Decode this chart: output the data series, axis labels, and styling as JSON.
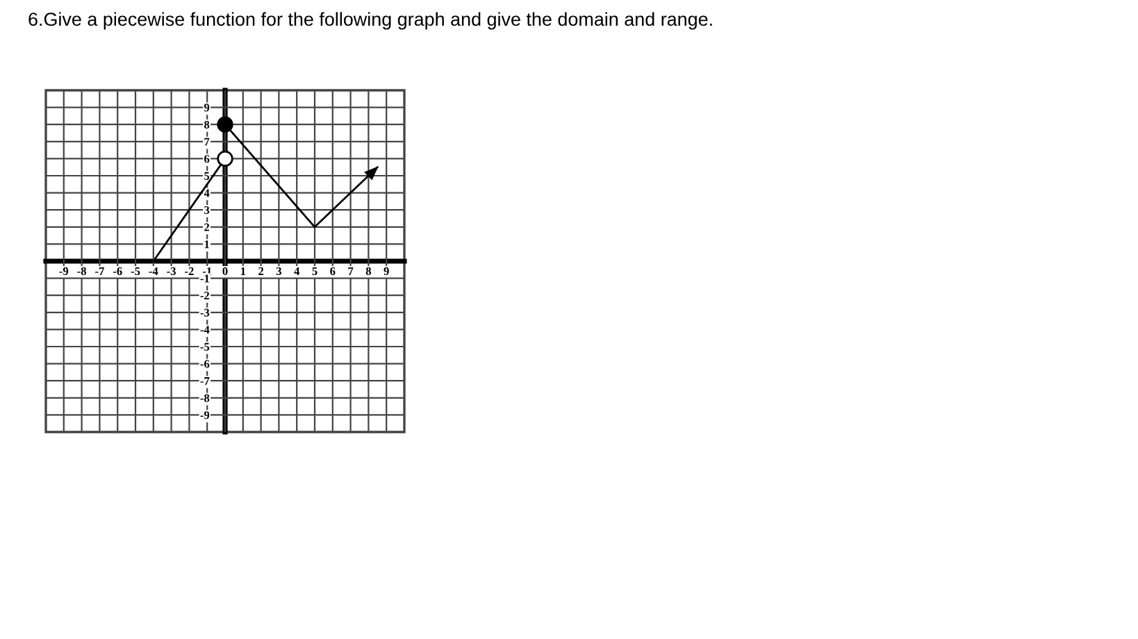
{
  "chart_data": {
    "type": "line",
    "title": "6.Give a piecewise function for the following graph and give the domain and range.",
    "xlim": [
      -10,
      10
    ],
    "ylim": [
      -10,
      10
    ],
    "xticks": [
      -9,
      -8,
      -7,
      -6,
      -5,
      -4,
      -3,
      -2,
      -1,
      0,
      1,
      2,
      3,
      4,
      5,
      6,
      7,
      8,
      9
    ],
    "yticks": [
      -9,
      -8,
      -7,
      -6,
      -5,
      -4,
      -3,
      -2,
      -1,
      1,
      2,
      3,
      4,
      5,
      6,
      7,
      8,
      9
    ],
    "grid": true,
    "series": [
      {
        "x": [
          -4,
          0
        ],
        "values": [
          0,
          6
        ],
        "color": "#000000"
      },
      {
        "x": [
          0,
          5,
          8.5
        ],
        "values": [
          8,
          2,
          5.5
        ],
        "color": "#000000"
      },
      {
        "type": "scatter",
        "x": [
          0
        ],
        "values": [
          8
        ],
        "color": "#000000",
        "marker": "circle"
      },
      {
        "type": "scatter",
        "x": [
          0
        ],
        "values": [
          6
        ],
        "color": "#ffffff",
        "marker": "circle"
      }
    ]
  }
}
